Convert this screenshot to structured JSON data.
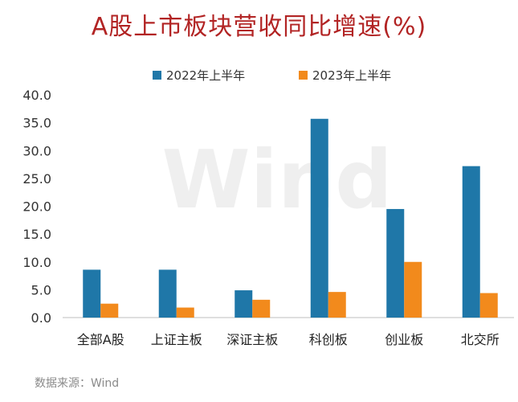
{
  "source": "数据来源：Wind",
  "watermark": "Wind",
  "colors": {
    "series_1": "#1f77a8",
    "series_2": "#f28a1c",
    "title": "#b22424"
  },
  "chart_data": {
    "type": "bar",
    "title": "A股上市板块营收同比增速(%)",
    "xlabel": "",
    "ylabel": "",
    "categories": [
      "全部A股",
      "上证主板",
      "深证主板",
      "科创板",
      "创业板",
      "北交所"
    ],
    "series": [
      {
        "name": "2022年上半年",
        "values": [
          8.6,
          8.6,
          4.9,
          35.7,
          19.5,
          27.2
        ]
      },
      {
        "name": "2023年上半年",
        "values": [
          2.5,
          1.8,
          3.2,
          4.6,
          10.0,
          4.4
        ]
      }
    ],
    "ylim": [
      0,
      40
    ],
    "yticks": [
      "0.0",
      "5.0",
      "10.0",
      "15.0",
      "20.0",
      "25.0",
      "30.0",
      "35.0",
      "40.0"
    ],
    "grid": false,
    "legend_position": "top"
  }
}
